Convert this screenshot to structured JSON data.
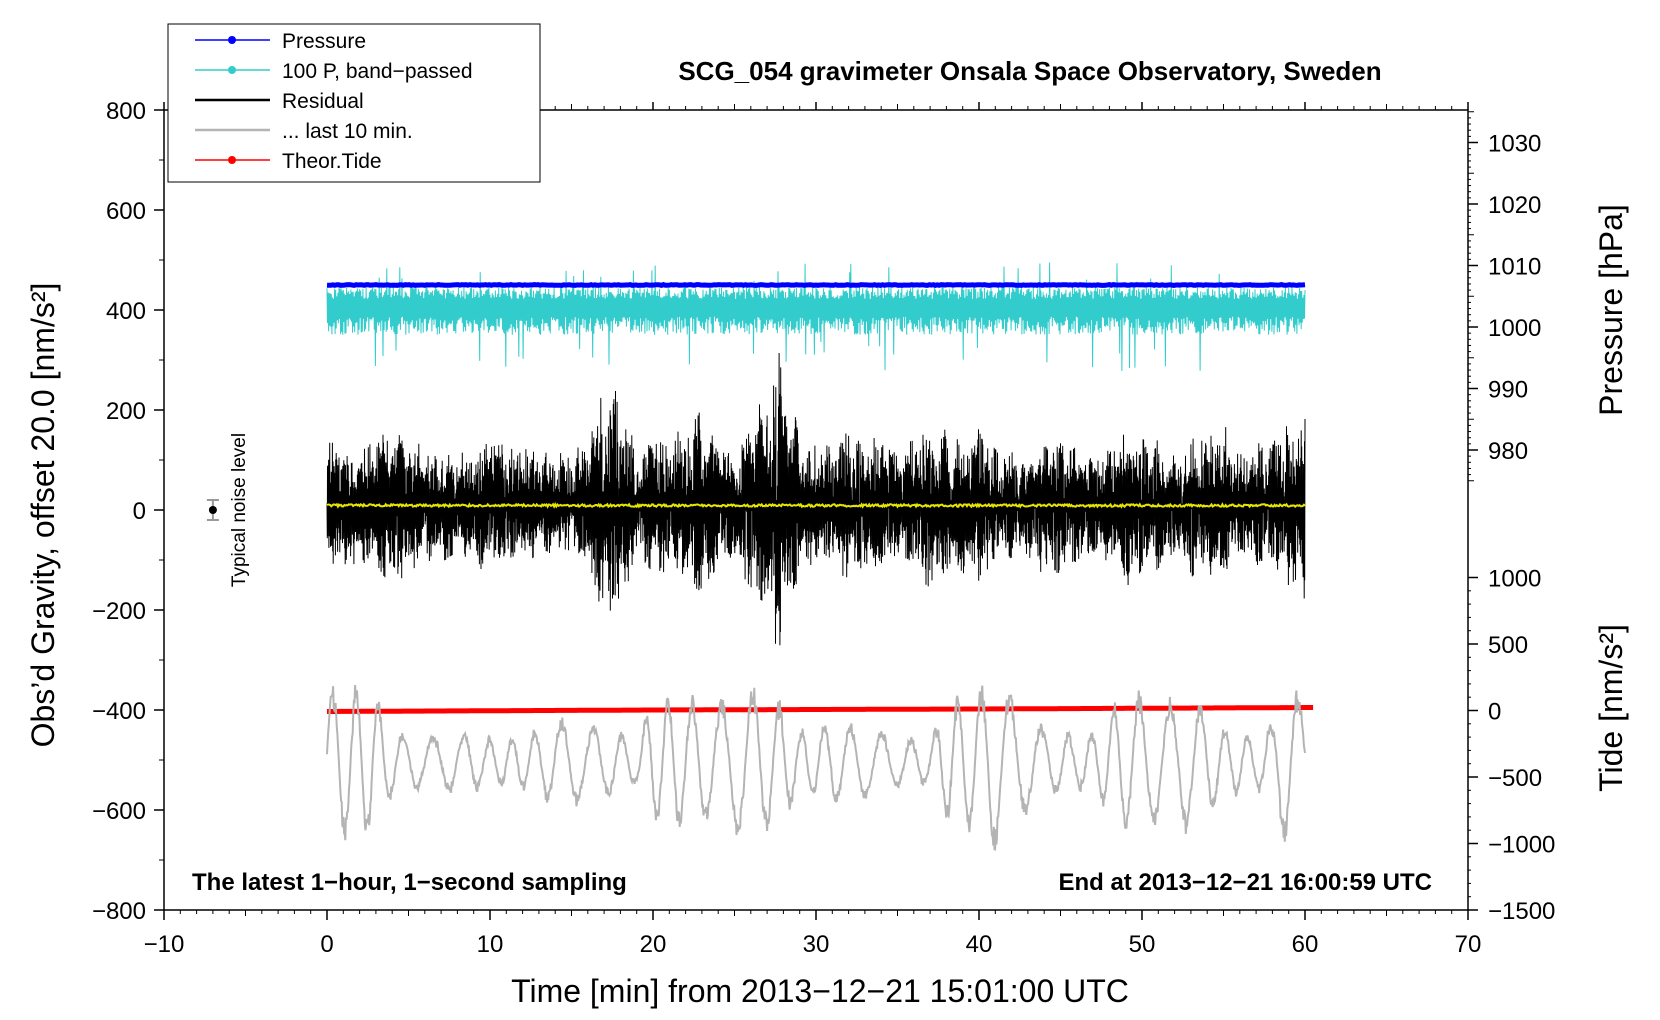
{
  "chart_data": {
    "type": "line",
    "title": "SCG_054 gravimeter Onsala Space Observatory, Sweden",
    "xlabel": "Time [min] from 2013−12−21 15:01:00 UTC",
    "ylabel_left": "Obs’d Gravity, offset 20.0 [nm/s²]",
    "ylabel_right_top": "Pressure [hPa]",
    "ylabel_right_bottom": "Tide [nm/s²]",
    "xlim": [
      -10,
      70
    ],
    "ylim": [
      -800,
      800
    ],
    "x_ticks": [
      -10,
      0,
      10,
      20,
      30,
      40,
      50,
      60,
      70
    ],
    "x_tick_labels": [
      "−10",
      "0",
      "10",
      "20",
      "30",
      "40",
      "50",
      "60",
      "70"
    ],
    "y_ticks": [
      -800,
      -600,
      -400,
      -200,
      0,
      200,
      400,
      600,
      800
    ],
    "y_tick_labels": [
      "−800",
      "−600",
      "−400",
      "−200",
      "0",
      "200",
      "400",
      "600",
      "800"
    ],
    "pressure_axis": {
      "ticks": [
        980,
        990,
        1000,
        1010,
        1020,
        1030
      ],
      "tick_labels": [
        "980",
        "990",
        "1000",
        "1010",
        "1020",
        "1030"
      ],
      "gravity_equivalent": [
        {
          "hpa": 980,
          "y": 120
        },
        {
          "hpa": 1030,
          "y": 735
        }
      ]
    },
    "tide_axis": {
      "ticks": [
        -1500,
        -1000,
        -500,
        0,
        500,
        1000
      ],
      "tick_labels": [
        "−1500",
        "−1000",
        "−500",
        "0",
        "500",
        "1000"
      ],
      "gravity_equivalent": [
        {
          "tide": -1500,
          "y": -800
        },
        {
          "tide": 1000,
          "y": -135
        }
      ]
    },
    "legend": [
      {
        "name": "Pressure",
        "color": "#0000ff",
        "marker": true
      },
      {
        "name": "100 P, band−passed",
        "color": "#33cccc",
        "marker": true
      },
      {
        "name": "Residual",
        "color": "#000000",
        "marker": false
      },
      {
        "name": "... last 10 min.",
        "color": "#b4b4b4",
        "marker": false
      },
      {
        "name": "Theor.Tide",
        "color": "#ff0000",
        "marker": true
      }
    ],
    "series": [
      {
        "name": "Pressure",
        "color": "#0000ff",
        "x_range": [
          0,
          60
        ],
        "approx_value": 450
      },
      {
        "name": "100 P, band−passed",
        "color": "#33cccc",
        "x_range": [
          0,
          60
        ],
        "baseline": 408,
        "range": [
          270,
          495
        ]
      },
      {
        "name": "Residual",
        "color": "#000000",
        "x_range": [
          0,
          60
        ],
        "baseline": 10,
        "range": [
          -310,
          330
        ],
        "envelope": [
          [
            0,
            130
          ],
          [
            2,
            125
          ],
          [
            4,
            160
          ],
          [
            6,
            125
          ],
          [
            8,
            110
          ],
          [
            10,
            140
          ],
          [
            12,
            120
          ],
          [
            14,
            100
          ],
          [
            16,
            140
          ],
          [
            17,
            240
          ],
          [
            18,
            230
          ],
          [
            19,
            105
          ],
          [
            20,
            150
          ],
          [
            21,
            140
          ],
          [
            22,
            175
          ],
          [
            23,
            200
          ],
          [
            24,
            130
          ],
          [
            25,
            110
          ],
          [
            26,
            180
          ],
          [
            27,
            230
          ],
          [
            27.5,
            300
          ],
          [
            28,
            310
          ],
          [
            29,
            140
          ],
          [
            30,
            130
          ],
          [
            31,
            125
          ],
          [
            32,
            155
          ],
          [
            33,
            135
          ],
          [
            34,
            150
          ],
          [
            35,
            110
          ],
          [
            36,
            140
          ],
          [
            37,
            170
          ],
          [
            38,
            150
          ],
          [
            39,
            140
          ],
          [
            40,
            165
          ],
          [
            41,
            120
          ],
          [
            42,
            110
          ],
          [
            43,
            105
          ],
          [
            44,
            150
          ],
          [
            45,
            135
          ],
          [
            46,
            130
          ],
          [
            47,
            100
          ],
          [
            48,
            120
          ],
          [
            49,
            165
          ],
          [
            50,
            140
          ],
          [
            51,
            140
          ],
          [
            52,
            100
          ],
          [
            53,
            145
          ],
          [
            54,
            150
          ],
          [
            55,
            165
          ],
          [
            56,
            105
          ],
          [
            57,
            125
          ],
          [
            58,
            135
          ],
          [
            59,
            170
          ],
          [
            60,
            190
          ]
        ]
      },
      {
        "name": "... last 10 min.",
        "color": "#b4b4b4",
        "x_range": [
          0,
          60
        ],
        "baseline": -505,
        "range": [
          -670,
          -305
        ],
        "envelope": [
          [
            0,
            150
          ],
          [
            3,
            140
          ],
          [
            4,
            60
          ],
          [
            6,
            50
          ],
          [
            8,
            60
          ],
          [
            10,
            45
          ],
          [
            12,
            50
          ],
          [
            14,
            85
          ],
          [
            16,
            75
          ],
          [
            18,
            60
          ],
          [
            19,
            40
          ],
          [
            20,
            120
          ],
          [
            22,
            130
          ],
          [
            24,
            120
          ],
          [
            26,
            150
          ],
          [
            28,
            110
          ],
          [
            29,
            60
          ],
          [
            31,
            80
          ],
          [
            33,
            70
          ],
          [
            35,
            50
          ],
          [
            37,
            40
          ],
          [
            38,
            120
          ],
          [
            40,
            140
          ],
          [
            41,
            170
          ],
          [
            42,
            130
          ],
          [
            44,
            70
          ],
          [
            46,
            50
          ],
          [
            47,
            60
          ],
          [
            49,
            140
          ],
          [
            51,
            120
          ],
          [
            53,
            130
          ],
          [
            55,
            70
          ],
          [
            57,
            50
          ],
          [
            58,
            80
          ],
          [
            59,
            190
          ],
          [
            60,
            90
          ]
        ]
      },
      {
        "name": "Theor.Tide",
        "color": "#ff0000",
        "x_range": [
          0,
          60.5
        ],
        "values": [
          [
            0,
            -403
          ],
          [
            20,
            -400
          ],
          [
            40,
            -398
          ],
          [
            60.5,
            -395
          ]
        ]
      },
      {
        "name": "Pressure effect (yellow)",
        "color": "#e6e600",
        "x_range": [
          0,
          60
        ],
        "approx_value": 9
      }
    ],
    "annotations": [
      {
        "text": "The latest 1−hour, 1−second sampling",
        "position": "bottom-left"
      },
      {
        "text": "End at 2013−12−21 16:00:59 UTC",
        "position": "bottom-right"
      },
      {
        "text": "Typical noise level",
        "x": -7,
        "y": 0,
        "error": 20
      }
    ]
  }
}
